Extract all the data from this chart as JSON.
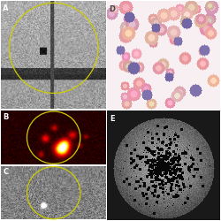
{
  "figure_layout": {
    "panels": [
      "A",
      "B",
      "C",
      "D",
      "E"
    ],
    "panel_positions": {
      "A": [
        0.005,
        0.505,
        0.475,
        0.49
      ],
      "B": [
        0.005,
        0.255,
        0.475,
        0.245
      ],
      "C": [
        0.005,
        0.005,
        0.475,
        0.245
      ],
      "D": [
        0.485,
        0.505,
        0.51,
        0.49
      ],
      "E": [
        0.485,
        0.005,
        0.51,
        0.495
      ]
    }
  }
}
